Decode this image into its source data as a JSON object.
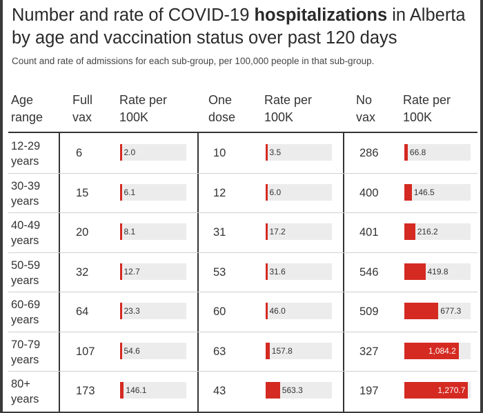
{
  "chart_data": {
    "type": "table",
    "title_part1": "Number and rate of COVID-19 ",
    "title_bold": "hospitalizations",
    "title_part2": " in Alberta by age and vaccination status over past 120 days",
    "subtitle": "Count and rate of admissions for each sub-group, per 100,000 people in that sub-group.",
    "headers": {
      "age": [
        "Age",
        "range"
      ],
      "full_count": [
        "Full",
        "vax"
      ],
      "full_rate": [
        "Rate per",
        "100K"
      ],
      "one_count": [
        "One",
        "dose"
      ],
      "one_rate": [
        "Rate per",
        "100K"
      ],
      "no_count": [
        "No",
        "vax"
      ],
      "no_rate": [
        "Rate per",
        "100K"
      ]
    },
    "rows": [
      {
        "age": [
          "12-29",
          "years"
        ],
        "full": {
          "count": "6",
          "rate": 2.0,
          "label": "2.0"
        },
        "one": {
          "count": "10",
          "rate": 3.5,
          "label": "3.5"
        },
        "no": {
          "count": "286",
          "rate": 66.8,
          "label": "66.8"
        }
      },
      {
        "age": [
          "30-39",
          "years"
        ],
        "full": {
          "count": "15",
          "rate": 6.1,
          "label": "6.1"
        },
        "one": {
          "count": "12",
          "rate": 6.0,
          "label": "6.0"
        },
        "no": {
          "count": "400",
          "rate": 146.5,
          "label": "146.5"
        }
      },
      {
        "age": [
          "40-49",
          "years"
        ],
        "full": {
          "count": "20",
          "rate": 8.1,
          "label": "8.1"
        },
        "one": {
          "count": "31",
          "rate": 17.2,
          "label": "17.2"
        },
        "no": {
          "count": "401",
          "rate": 216.2,
          "label": "216.2"
        }
      },
      {
        "age": [
          "50-59",
          "years"
        ],
        "full": {
          "count": "32",
          "rate": 12.7,
          "label": "12.7"
        },
        "one": {
          "count": "53",
          "rate": 31.6,
          "label": "31.6"
        },
        "no": {
          "count": "546",
          "rate": 419.8,
          "label": "419.8"
        }
      },
      {
        "age": [
          "60-69",
          "years"
        ],
        "full": {
          "count": "64",
          "rate": 23.3,
          "label": "23.3"
        },
        "one": {
          "count": "60",
          "rate": 46.0,
          "label": "46.0"
        },
        "no": {
          "count": "509",
          "rate": 677.3,
          "label": "677.3"
        }
      },
      {
        "age": [
          "70-79",
          "years"
        ],
        "full": {
          "count": "107",
          "rate": 54.6,
          "label": "54.6"
        },
        "one": {
          "count": "63",
          "rate": 157.8,
          "label": "157.8"
        },
        "no": {
          "count": "327",
          "rate": 1084.2,
          "label": "1,084.2"
        }
      },
      {
        "age": [
          "80+",
          "years"
        ],
        "full": {
          "count": "173",
          "rate": 146.1,
          "label": "146.1"
        },
        "one": {
          "count": "43",
          "rate": 563.3,
          "label": "563.3"
        },
        "no": {
          "count": "197",
          "rate": 1270.7,
          "label": "1,270.7"
        }
      }
    ],
    "colors": {
      "bar": "#d42a22",
      "track": "#ececec"
    }
  }
}
